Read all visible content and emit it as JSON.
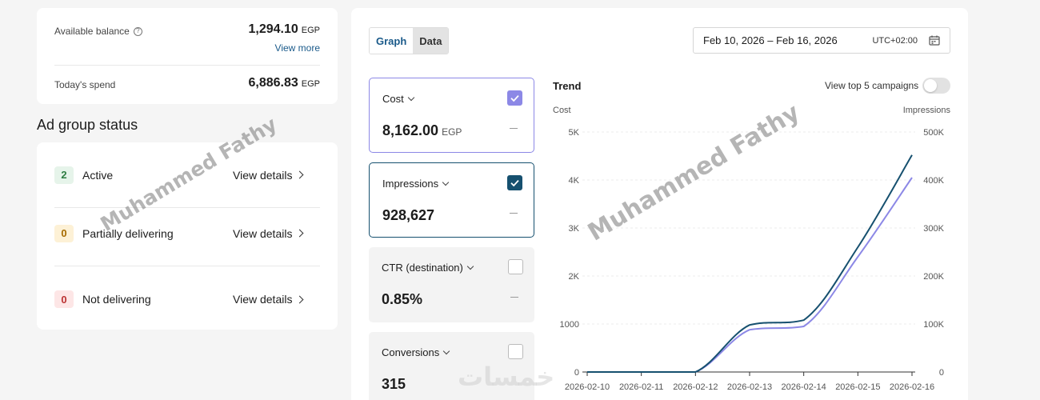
{
  "balance": {
    "available_label": "Available balance",
    "available_value": "1,294.10",
    "currency": "EGP",
    "view_more": "View more",
    "spend_label": "Today's spend",
    "spend_value": "6,886.83"
  },
  "ad_group_status": {
    "title": "Ad group status",
    "items": [
      {
        "count": "2",
        "label": "Active",
        "action": "View details",
        "color": "#2e7d42"
      },
      {
        "count": "0",
        "label": "Partially delivering",
        "action": "View details",
        "color": "#a66b00"
      },
      {
        "count": "0",
        "label": "Not delivering",
        "action": "View details",
        "color": "#b33333"
      }
    ]
  },
  "view_toggle": {
    "graph": "Graph",
    "data": "Data",
    "active": "Graph"
  },
  "date_range": {
    "text": "Feb 10, 2026 – Feb 16, 2026",
    "timezone": "UTC+02:00"
  },
  "metrics": [
    {
      "name": "Cost",
      "value": "8,162.00",
      "currency": "EGP",
      "checked": true,
      "color": "#8c88e6"
    },
    {
      "name": "Impressions",
      "value": "928,627",
      "checked": true,
      "color": "#16506f"
    },
    {
      "name": "CTR (destination)",
      "value": "0.85%",
      "checked": false
    },
    {
      "name": "Conversions",
      "value": "315",
      "checked": false
    }
  ],
  "trend": {
    "title": "Trend",
    "top5_label": "View top 5 campaigns",
    "top5_enabled": false
  },
  "chart_data": {
    "type": "line",
    "title": "Trend",
    "x": [
      "2026-02-10",
      "2026-02-11",
      "2026-02-12",
      "2026-02-13",
      "2026-02-14",
      "2026-02-15",
      "2026-02-16"
    ],
    "y_left": {
      "label": "Cost",
      "ticks": [
        "0",
        "1000",
        "2K",
        "3K",
        "4K",
        "5K"
      ],
      "range": [
        0,
        5000
      ]
    },
    "y_right": {
      "label": "Impressions",
      "ticks": [
        "0",
        "100K",
        "200K",
        "300K",
        "400K",
        "500K"
      ],
      "range": [
        0,
        500000
      ]
    },
    "series": [
      {
        "name": "Cost",
        "axis": "left",
        "color": "#8c88e6",
        "values": [
          0,
          0,
          0,
          880,
          950,
          2400,
          4050
        ]
      },
      {
        "name": "Impressions",
        "axis": "right",
        "color": "#16506f",
        "values": [
          0,
          0,
          0,
          98000,
          108000,
          260000,
          452000
        ]
      }
    ],
    "grid": true
  },
  "watermarks": [
    "Muhammed Fathy",
    "Muhammed Fathy",
    "خمسات"
  ]
}
